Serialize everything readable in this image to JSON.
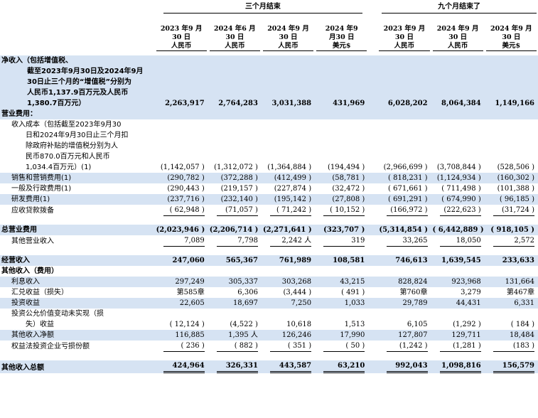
{
  "header": {
    "group_three_months": "三个月结束",
    "group_nine_months": "九个月结束了",
    "columns": [
      {
        "line1": "2023 年9 月",
        "line2": "30 日",
        "currency": "人民币"
      },
      {
        "line1": "2024 年6 月",
        "line2": "30 日",
        "currency": "人民币"
      },
      {
        "line1": "2024 年9 月",
        "line2": "30 日",
        "currency": "人民币"
      },
      {
        "line1": "2024 年9",
        "line2": "月30 日",
        "currency": "美元$"
      },
      {
        "line1": "2023 年9 月",
        "line2": "30 日",
        "currency": "人民币"
      },
      {
        "line1": "2024 年9 月",
        "line2": "30 日",
        "currency": "人民币"
      },
      {
        "line1": "2024 年9 月",
        "line2": "30 日",
        "currency": "美元$"
      }
    ]
  },
  "rows": {
    "net_revenue": {
      "label_lines": [
        "净收入（包括增值税、",
        "截至2023年9月30日及2024年9月",
        "30日止三个月的“增值税”分别为",
        "人民币1,137.9百万元及人民币",
        "1,380.7百万元）"
      ],
      "values": [
        "2,263,917",
        "2,764,283",
        "3,031,388",
        "431,969",
        "6,028,202",
        "8,064,384",
        "1,149,166"
      ]
    },
    "operating_expenses_heading": "营业费用：",
    "cost_of_revenue": {
      "label_lines": [
        "收入成本（包括截至2023年9月30",
        "日和2024年9月30日止三个月扣",
        "除政府补贴的增值税分别为人",
        "民币870.0百万元和人民币",
        "1,034.4百万元）(1)"
      ],
      "values": [
        "(1,142,057 )",
        "(1,312,072 )",
        "(1,364,884 )",
        "(194,494 )",
        "(2,966,699 )",
        "(3,708,844 )",
        "(528,506 )"
      ]
    },
    "sales_marketing": {
      "label": "销售和营销费用(1)",
      "values": [
        "(290,782 )",
        "(372,288 )",
        "(412,499 )",
        "(58,781 )",
        "( 818,231 )",
        "(1,124,934 )",
        "(160,302 )"
      ]
    },
    "general_admin": {
      "label": "一般及行政费用(1)",
      "values": [
        "(290,443 )",
        "(219,157 )",
        "(227,874 )",
        "(32,472 )",
        "( 671,661 )",
        "( 711,498 )",
        "(101,388 )"
      ]
    },
    "rnd": {
      "label": "研发费用(1)",
      "values": [
        "(237,716 )",
        "(232,140 )",
        "(195,142 )",
        "(27,808 )",
        "( 691,291 )",
        "( 674,990 )",
        "( 96,185 )"
      ]
    },
    "loan_provision": {
      "label": "应收贷款拨备",
      "values": [
        "( 62,948 )",
        "(71,057 )",
        "( 71,242 )",
        "( 10,152 )",
        "(166,972 )",
        "(222,623 )",
        "(31,724 )"
      ]
    },
    "total_opex": {
      "label": "总营业费用",
      "values": [
        "(2,023,946 )",
        "(2,206,714 )",
        "(2,271,641 )",
        "(323,707 )",
        "(5,314,854 )",
        "( 6,442,889 )",
        "( 918,105 )"
      ]
    },
    "other_operating_income": {
      "label": "其他营业收入",
      "values": [
        "7,089",
        "7,798",
        "2,242 人",
        "319",
        "33,265",
        "18,050",
        "2,572"
      ]
    },
    "operating_income": {
      "label": "经营收入",
      "values": [
        "247,060",
        "565,367",
        "761,989",
        "108,581",
        "746,613",
        "1,639,545",
        "233,633"
      ]
    },
    "other_income_heading": "其他收入（费用）",
    "interest_income": {
      "label": "利息收入",
      "values": [
        "297,249",
        "305,337",
        "303,268",
        "43,215",
        "828,824",
        "923,968",
        "131,664"
      ]
    },
    "fx_gain": {
      "label": "汇兑收益（损失）",
      "values": [
        "第585章",
        "6,306",
        "(3,444 )",
        "( 491 )",
        "第760章",
        "3,279",
        "第467章"
      ]
    },
    "investment_income": {
      "label": "投资收益",
      "values": [
        "22,605",
        "18,697",
        "7,250",
        "1,033",
        "29,789",
        "44,431",
        "6,331"
      ]
    },
    "unrealized_fv": {
      "label_lines": [
        "投资公允价值变动未实现（损",
        "失）收益"
      ],
      "values": [
        "( 12,124 )",
        "(4,522 )",
        "10,618",
        "1,513",
        "6,105",
        "(1,292 )",
        "( 184 )"
      ]
    },
    "other_income_net": {
      "label": "其他收入净额",
      "values": [
        "116,885",
        "1,395 人",
        "126,246",
        "17,990",
        "127,807",
        "129,711",
        "18,484"
      ]
    },
    "equity_method_loss": {
      "label": "权益法投资企业亏损份额",
      "values": [
        "( 236 )",
        "( 882 )",
        "( 351 )",
        "( 50 )",
        "(1,242 )",
        "(1,281 )",
        "(183 )"
      ]
    },
    "total_other_income": {
      "label": "其他收入总额",
      "values": [
        "424,964",
        "326,331",
        "443,587",
        "63,210",
        "992,043",
        "1,098,816",
        "156,579"
      ]
    }
  }
}
